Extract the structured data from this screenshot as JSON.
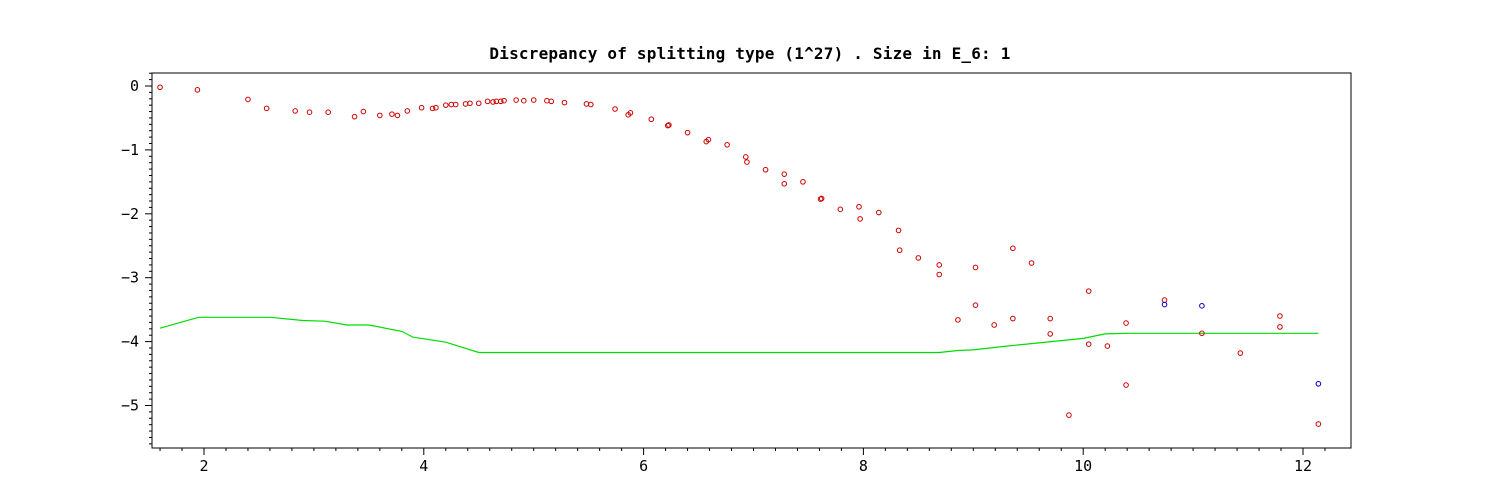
{
  "chart_data": {
    "type": "scatter",
    "title": "Discrepancy of splitting type (1^27) .  Size in E_6: 1",
    "xlabel": "",
    "ylabel": "",
    "xlim": [
      1.55,
      12.35
    ],
    "ylim": [
      -5.7,
      0.2
    ],
    "x_ticks": [
      2,
      4,
      6,
      8,
      10,
      12
    ],
    "x_tick_labels": [
      "2",
      "4",
      "6",
      "8",
      "10",
      "12"
    ],
    "y_ticks": [
      0,
      -1,
      -2,
      -3,
      -4,
      -5
    ],
    "y_tick_labels": [
      "0",
      "−1",
      "−2",
      "−3",
      "−4",
      "−5"
    ],
    "grid": false,
    "colors": {
      "red_points": "#cc0000",
      "blue_points": "#0000cc",
      "line": "#00dd00",
      "axes": "#000000"
    },
    "series": [
      {
        "kind": "points",
        "color": "red",
        "points": [
          [
            1.6,
            -0.02
          ],
          [
            1.94,
            -0.06
          ],
          [
            2.4,
            -0.21
          ],
          [
            2.57,
            -0.35
          ],
          [
            2.83,
            -0.39
          ],
          [
            2.96,
            -0.41
          ],
          [
            3.13,
            -0.41
          ],
          [
            3.37,
            -0.48
          ],
          [
            3.45,
            -0.4
          ],
          [
            3.6,
            -0.46
          ],
          [
            3.71,
            -0.44
          ],
          [
            3.76,
            -0.46
          ],
          [
            3.85,
            -0.39
          ],
          [
            3.98,
            -0.34
          ],
          [
            4.08,
            -0.35
          ],
          [
            4.11,
            -0.34
          ],
          [
            4.2,
            -0.3
          ],
          [
            4.25,
            -0.29
          ],
          [
            4.29,
            -0.29
          ],
          [
            4.38,
            -0.28
          ],
          [
            4.42,
            -0.27
          ],
          [
            4.5,
            -0.27
          ],
          [
            4.58,
            -0.24
          ],
          [
            4.63,
            -0.25
          ],
          [
            4.66,
            -0.24
          ],
          [
            4.7,
            -0.24
          ],
          [
            4.73,
            -0.23
          ],
          [
            4.84,
            -0.22
          ],
          [
            4.91,
            -0.23
          ],
          [
            5.0,
            -0.22
          ],
          [
            5.12,
            -0.23
          ],
          [
            5.16,
            -0.24
          ],
          [
            5.28,
            -0.26
          ],
          [
            5.48,
            -0.28
          ],
          [
            5.52,
            -0.29
          ],
          [
            5.74,
            -0.36
          ],
          [
            5.86,
            -0.45
          ],
          [
            5.88,
            -0.42
          ],
          [
            6.07,
            -0.52
          ],
          [
            6.22,
            -0.62
          ],
          [
            6.23,
            -0.61
          ],
          [
            6.4,
            -0.73
          ],
          [
            6.57,
            -0.87
          ],
          [
            6.59,
            -0.84
          ],
          [
            6.76,
            -0.92
          ],
          [
            6.93,
            -1.11
          ],
          [
            6.94,
            -1.19
          ],
          [
            7.11,
            -1.31
          ],
          [
            7.28,
            -1.38
          ],
          [
            7.28,
            -1.53
          ],
          [
            7.45,
            -1.5
          ],
          [
            7.61,
            -1.77
          ],
          [
            7.62,
            -1.76
          ],
          [
            7.79,
            -1.93
          ],
          [
            7.96,
            -1.89
          ],
          [
            7.97,
            -2.08
          ],
          [
            8.14,
            -1.98
          ],
          [
            8.32,
            -2.26
          ],
          [
            8.33,
            -2.57
          ],
          [
            8.5,
            -2.69
          ],
          [
            8.69,
            -2.8
          ],
          [
            8.69,
            -2.95
          ],
          [
            8.86,
            -3.66
          ],
          [
            9.02,
            -2.84
          ],
          [
            9.02,
            -3.43
          ],
          [
            9.19,
            -3.74
          ],
          [
            9.36,
            -2.54
          ],
          [
            9.36,
            -3.64
          ],
          [
            9.53,
            -2.77
          ],
          [
            9.7,
            -3.64
          ],
          [
            9.7,
            -3.88
          ],
          [
            9.87,
            -5.15
          ],
          [
            10.05,
            -3.21
          ],
          [
            10.05,
            -4.04
          ],
          [
            10.22,
            -4.07
          ],
          [
            10.39,
            -3.71
          ],
          [
            10.39,
            -4.68
          ],
          [
            10.74,
            -3.35
          ],
          [
            11.08,
            -3.87
          ],
          [
            11.43,
            -4.18
          ],
          [
            11.79,
            -3.6
          ],
          [
            11.79,
            -3.77
          ],
          [
            12.14,
            -5.29
          ]
        ]
      },
      {
        "kind": "points",
        "color": "blue",
        "points": [
          [
            10.74,
            -3.42
          ],
          [
            11.08,
            -3.44
          ],
          [
            12.14,
            -4.66
          ]
        ]
      },
      {
        "kind": "line",
        "color": "green",
        "points": [
          [
            1.6,
            -3.79
          ],
          [
            1.95,
            -3.62
          ],
          [
            2.2,
            -3.62
          ],
          [
            2.6,
            -3.62
          ],
          [
            2.9,
            -3.67
          ],
          [
            3.1,
            -3.68
          ],
          [
            3.3,
            -3.74
          ],
          [
            3.5,
            -3.74
          ],
          [
            3.8,
            -3.84
          ],
          [
            3.9,
            -3.93
          ],
          [
            4.2,
            -4.01
          ],
          [
            4.5,
            -4.17
          ],
          [
            5.0,
            -4.17
          ],
          [
            6.0,
            -4.17
          ],
          [
            7.0,
            -4.17
          ],
          [
            8.0,
            -4.17
          ],
          [
            8.69,
            -4.17
          ],
          [
            8.86,
            -4.14
          ],
          [
            9.0,
            -4.13
          ],
          [
            9.3,
            -4.07
          ],
          [
            9.6,
            -4.02
          ],
          [
            10.0,
            -3.95
          ],
          [
            10.2,
            -3.88
          ],
          [
            10.4,
            -3.87
          ],
          [
            11.0,
            -3.87
          ],
          [
            11.8,
            -3.87
          ],
          [
            12.14,
            -3.87
          ]
        ]
      }
    ]
  }
}
